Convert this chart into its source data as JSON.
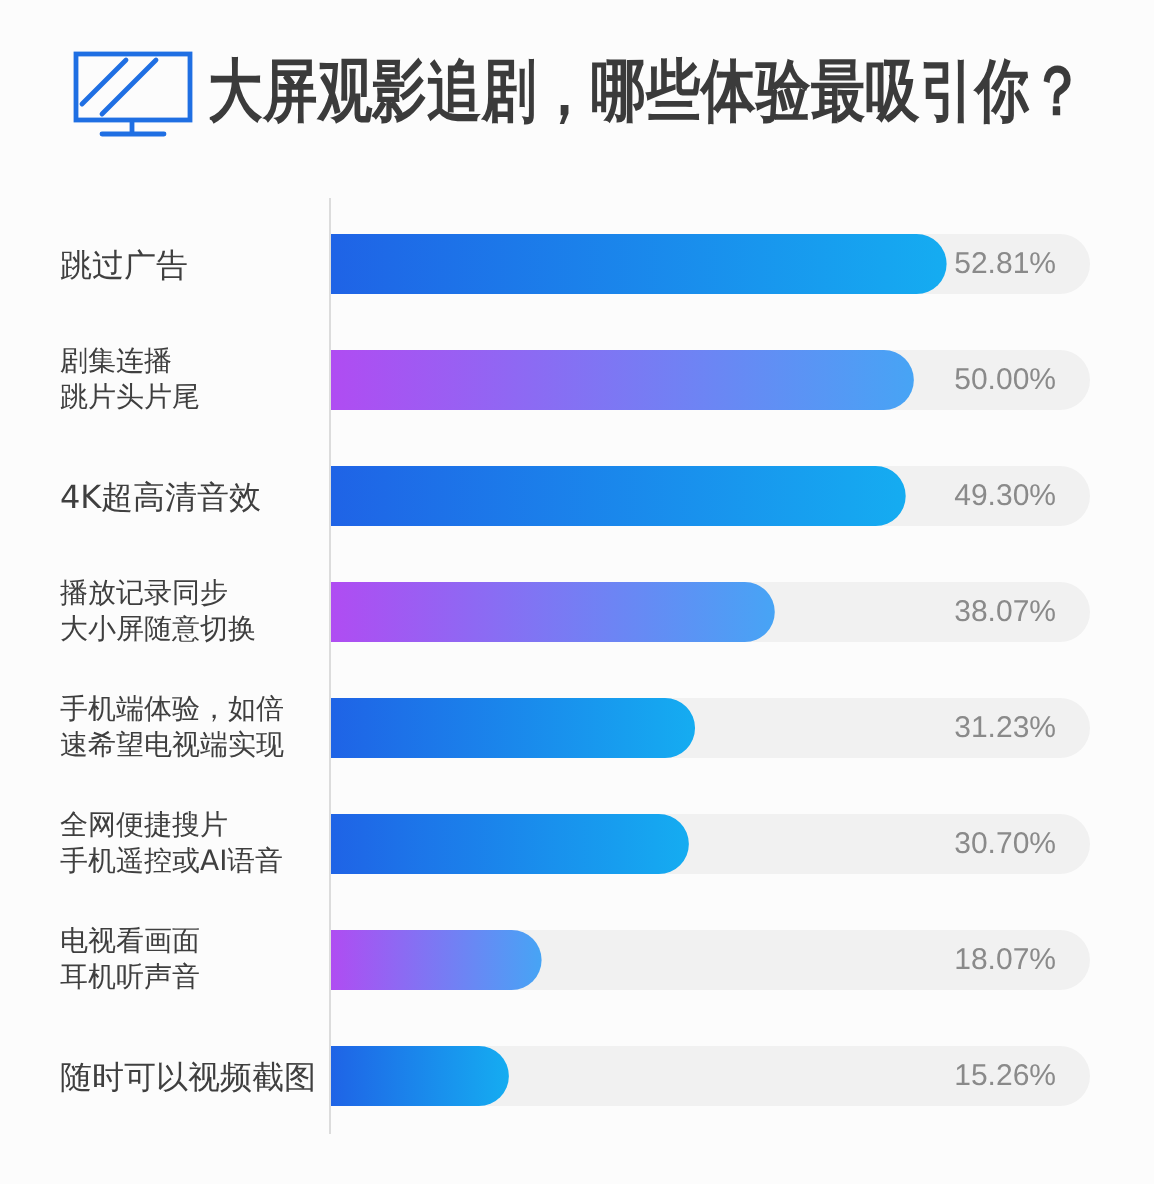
{
  "chart_data": {
    "type": "bar",
    "orientation": "horizontal",
    "title": "大屏观影追剧，哪些体验最吸引你？",
    "categories": [
      "跳过广告",
      "剧集连播跳片头片尾",
      "4K超高清音效",
      "播放记录同步大小屏随意切换",
      "手机端体验，如倍速希望电视端实现",
      "全网便捷搜片手机遥控或AI语音",
      "电视看画面耳机听声音",
      "随时可以视频截图"
    ],
    "values": [
      52.81,
      50.0,
      49.3,
      38.07,
      31.23,
      30.7,
      18.07,
      15.26
    ],
    "colors": [
      "#1f63e6",
      "#b04cf2",
      "#1f63e6",
      "#b04cf2",
      "#1f63e6",
      "#1f63e6",
      "#b04cf2",
      "#1f63e6"
    ],
    "value_labels": [
      "52.81%",
      "50.00%",
      "49.30%",
      "38.07%",
      "31.23%",
      "30.70%",
      "18.07%",
      "15.26%"
    ]
  }
}
